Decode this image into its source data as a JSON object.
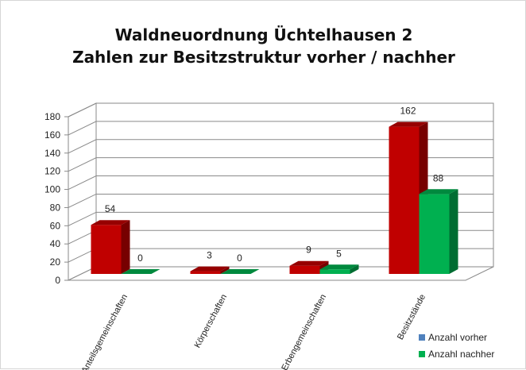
{
  "chart_data": {
    "type": "bar",
    "title": "Waldneuordnung Üchtelhausen 2",
    "subtitle": "Zahlen zur Besitzstruktur vorher / nachher",
    "categories": [
      "Anteilsgemeinschaften",
      "Körperschaften",
      "Erbengemeinschaften",
      "Besitzstände"
    ],
    "series": [
      {
        "name": "Anzahl vorher",
        "values": [
          54,
          3,
          9,
          162
        ],
        "color": "#c00000",
        "legend_color": "#4f81bd"
      },
      {
        "name": "Anzahl nachher",
        "values": [
          0,
          0,
          5,
          88
        ],
        "color": "#00b050",
        "legend_color": "#00b050"
      }
    ],
    "ylim": [
      0,
      180
    ],
    "yticks": [
      0,
      20,
      40,
      60,
      80,
      100,
      120,
      140,
      160,
      180
    ],
    "grid": true,
    "legend_position": "bottom-right",
    "three_d": true
  }
}
